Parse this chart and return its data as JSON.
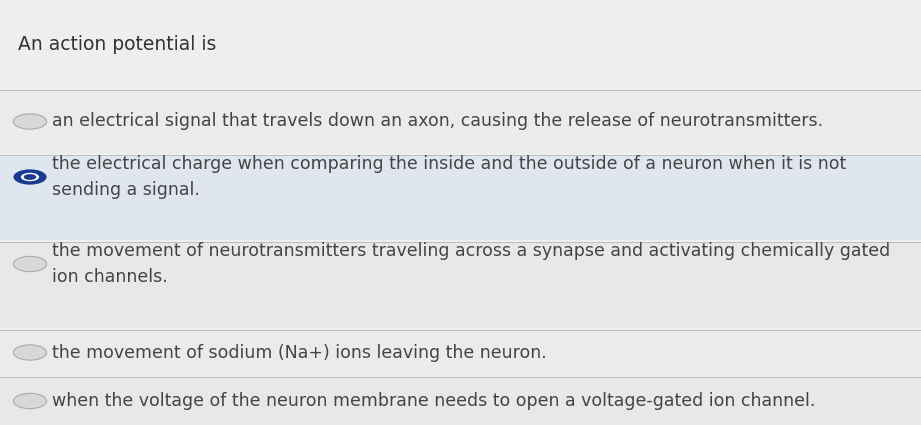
{
  "background_color": "#e8e8e8",
  "title": "An action potential is",
  "title_fontsize": 13.5,
  "title_color": "#333333",
  "options": [
    {
      "text": "an electrical signal that travels down an axon, causing the release of neurotransmitters.",
      "filled": false,
      "row_color": "#e2e2e2"
    },
    {
      "text": "the electrical charge when comparing the inside and the outside of a neuron when it is not\nsending a signal.",
      "filled": true,
      "row_color": "#dde2ec"
    },
    {
      "text": "the movement of neurotransmitters traveling across a synapse and activating chemically gated\nion channels.",
      "filled": false,
      "row_color": "#e2e2e2"
    },
    {
      "text": "the movement of sodium (Na+) ions leaving the neuron.",
      "filled": false,
      "row_color": "#e2e2e2"
    },
    {
      "text": "when the voltage of the neuron membrane needs to open a voltage-gated ion channel.",
      "filled": false,
      "row_color": "#e2e2e2"
    }
  ],
  "text_fontsize": 12.5,
  "text_color": "#444444",
  "selected_color": "#1a3a8f",
  "unselected_face_color": "#d8d8d8",
  "unselected_edge_color": "#aaaaaa",
  "separator_color": "#c0c0c0",
  "title_area_color": "#e8e8e8"
}
